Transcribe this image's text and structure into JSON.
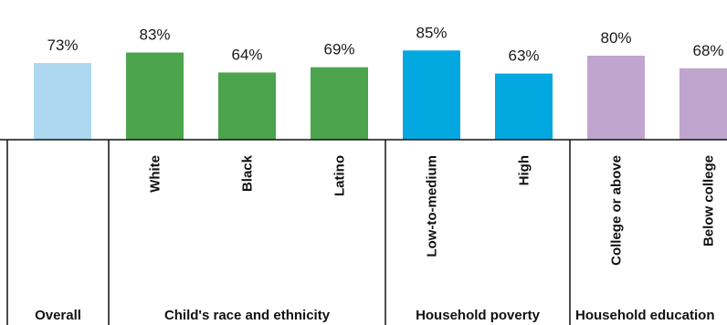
{
  "chart_data": {
    "type": "bar",
    "title": "",
    "xlabel": "",
    "ylabel": "",
    "ylim": [
      0,
      100
    ],
    "categories": [
      "Overall",
      "White",
      "Black",
      "Latino",
      "Low-to-medium",
      "High",
      "College or above",
      "Below college"
    ],
    "values": [
      73,
      83,
      64,
      69,
      85,
      63,
      80,
      68
    ],
    "value_labels": [
      "73%",
      "83%",
      "64%",
      "69%",
      "85%",
      "63%",
      "80%",
      "68%"
    ],
    "colors": [
      "#add8f0",
      "#4ca44c",
      "#4ca44c",
      "#4ca44c",
      "#04a8e0",
      "#04a8e0",
      "#c0a5cf",
      "#c0a5cf"
    ],
    "groups": [
      {
        "label": "Overall",
        "categories": [
          "Overall"
        ]
      },
      {
        "label": "Child's race and ethnicity",
        "categories": [
          "White",
          "Black",
          "Latino"
        ]
      },
      {
        "label": "Household poverty",
        "categories": [
          "Low-to-medium",
          "High"
        ]
      },
      {
        "label": "Household education",
        "categories": [
          "College or above",
          "Below college"
        ]
      }
    ],
    "grid": false,
    "legend": "none"
  }
}
